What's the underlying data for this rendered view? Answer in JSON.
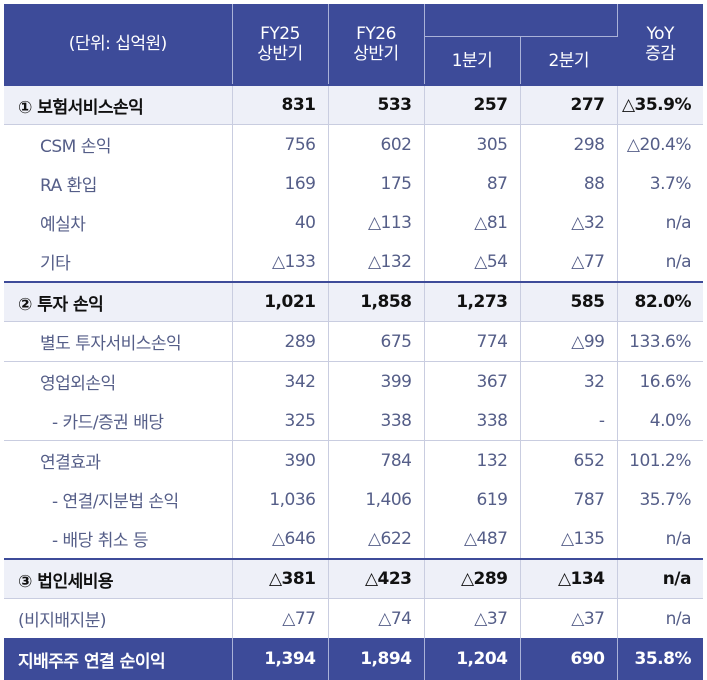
{
  "header": {
    "unit": "(단위: 십억원)",
    "fy25": "FY25\n상반기",
    "fy26": "FY26\n상반기",
    "q1": "1분기",
    "q2": "2분기",
    "yoy": "YoY\n증감"
  },
  "rows": [
    {
      "kind": "section",
      "label": "① 보험서비스손익",
      "values": [
        "831",
        "533",
        "257",
        "277",
        "△35.9%"
      ]
    },
    {
      "kind": "sub",
      "label": "CSM 손익",
      "values": [
        "756",
        "602",
        "305",
        "298",
        "△20.4%"
      ]
    },
    {
      "kind": "sub",
      "label": "RA 환입",
      "values": [
        "169",
        "175",
        "87",
        "88",
        "3.7%"
      ]
    },
    {
      "kind": "sub",
      "label": "예실차",
      "values": [
        "40",
        "△113",
        "△81",
        "△32",
        "n/a"
      ]
    },
    {
      "kind": "sub",
      "label": "기타",
      "values": [
        "△133",
        "△132",
        "△54",
        "△77",
        "n/a"
      ]
    },
    {
      "kind": "section",
      "label": "② 투자 손익",
      "values": [
        "1,021",
        "1,858",
        "1,273",
        "585",
        "82.0%"
      ]
    },
    {
      "kind": "sub",
      "label": "별도 투자서비스손익",
      "values": [
        "289",
        "675",
        "774",
        "△99",
        "133.6%"
      ]
    },
    {
      "kind": "sub grouptop",
      "label": "영업외손익",
      "values": [
        "342",
        "399",
        "367",
        "32",
        "16.6%"
      ]
    },
    {
      "kind": "subsub",
      "label": "- 카드/증권 배당",
      "values": [
        "325",
        "338",
        "338",
        "-",
        "4.0%"
      ]
    },
    {
      "kind": "sub grouptop",
      "label": "연결효과",
      "values": [
        "390",
        "784",
        "132",
        "652",
        "101.2%"
      ]
    },
    {
      "kind": "subsub",
      "label": "- 연결/지분법 손익",
      "values": [
        "1,036",
        "1,406",
        "619",
        "787",
        "35.7%"
      ]
    },
    {
      "kind": "subsub",
      "label": "- 배당 취소 등",
      "values": [
        "△646",
        "△622",
        "△487",
        "△135",
        "n/a"
      ]
    },
    {
      "kind": "section",
      "label": "③ 법인세비용",
      "values": [
        "△381",
        "△423",
        "△289",
        "△134",
        "n/a"
      ]
    },
    {
      "kind": "plain",
      "label": "(비지배지분)",
      "values": [
        "△77",
        "△74",
        "△37",
        "△37",
        "n/a"
      ]
    },
    {
      "kind": "total",
      "label": "지배주주 연결 순이익",
      "values": [
        "1,394",
        "1,894",
        "1,204",
        "690",
        "35.8%"
      ]
    }
  ]
}
